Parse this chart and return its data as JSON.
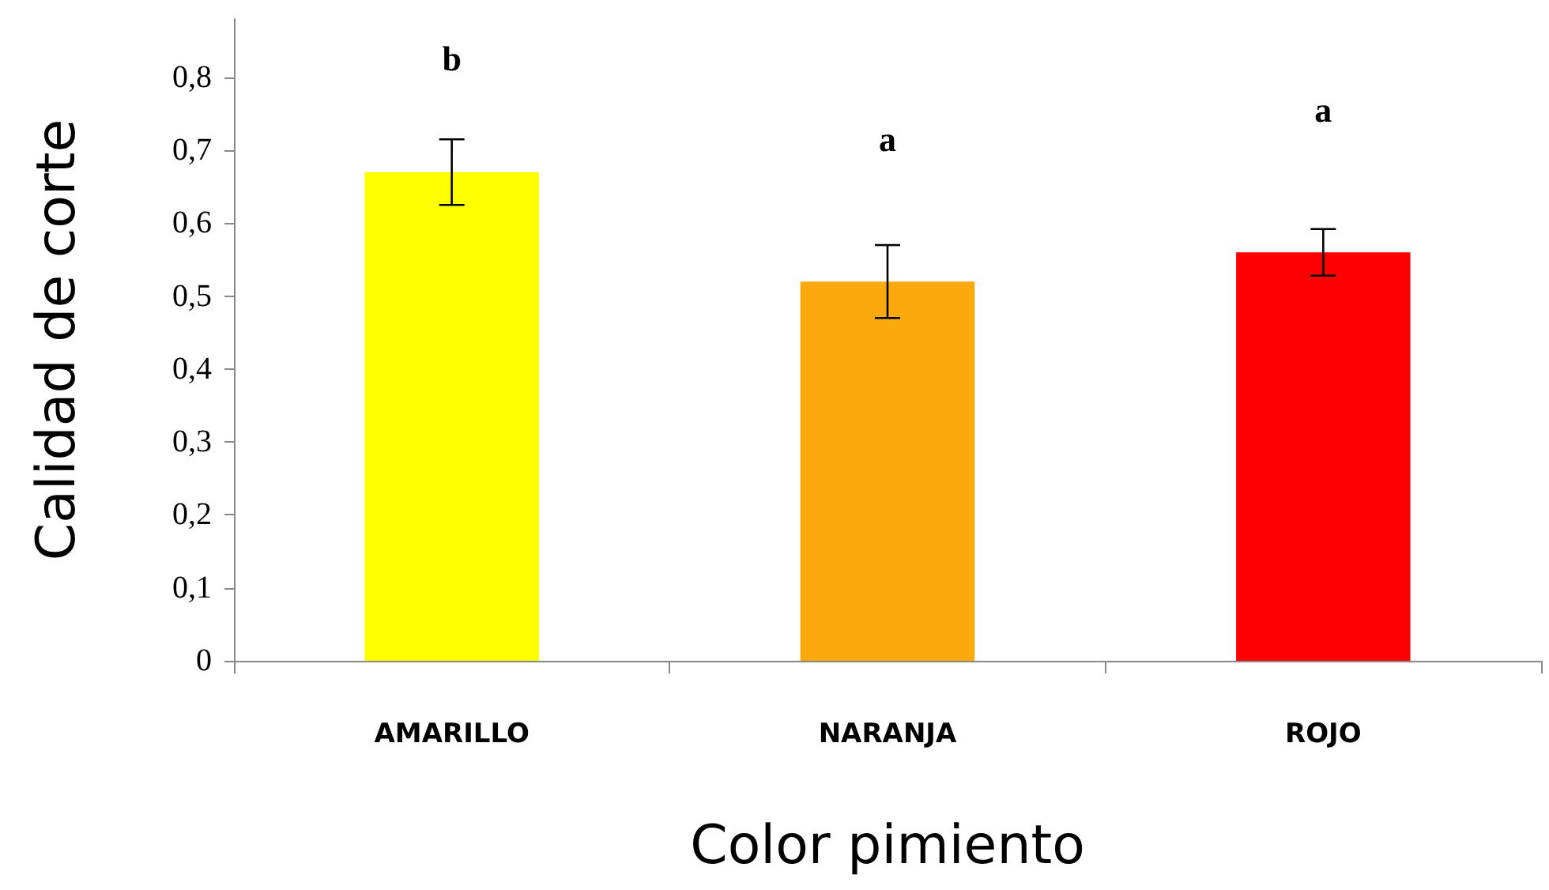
{
  "chart_data": {
    "type": "bar",
    "xlabel": "Color pimiento",
    "ylabel": "Calidad de corte",
    "categories": [
      "AMARILLO",
      "NARANJA",
      "ROJO"
    ],
    "values": [
      0.67,
      0.52,
      0.56
    ],
    "colors": [
      "#ffff00",
      "#fca90e",
      "#ff0000"
    ],
    "errors": [
      0.045,
      0.05,
      0.032
    ],
    "ylim": [
      0,
      0.88
    ],
    "yticks": [
      0,
      {
        "value": 0.1,
        "label": "0,1"
      },
      {
        "value": 0.2,
        "label": "0,2"
      },
      {
        "value": 0.3,
        "label": "0,3"
      },
      {
        "value": 0.4,
        "label": "0,4"
      },
      {
        "value": 0.5,
        "label": "0,5"
      },
      {
        "value": 0.6,
        "label": "0,6"
      },
      {
        "value": 0.7,
        "label": "0,7"
      },
      {
        "value": 0.8,
        "label": "0,8"
      }
    ],
    "annotations": [
      "b",
      "a",
      "a"
    ],
    "grid": false
  }
}
